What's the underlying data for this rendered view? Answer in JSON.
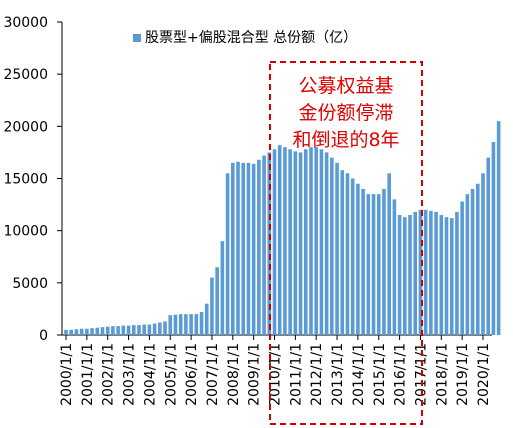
{
  "chart_data": {
    "type": "bar",
    "legend": "股票型+偏股混合型 总份额（亿）",
    "color": "#5b9bd5",
    "annotation": [
      "公募权益基",
      "金份额停滞",
      "和倒退的8年"
    ],
    "categories": [
      "2000/1/1",
      null,
      null,
      null,
      "2001/1/1",
      null,
      null,
      null,
      "2002/1/1",
      null,
      null,
      null,
      "2003/1/1",
      null,
      null,
      null,
      "2004/1/1",
      null,
      null,
      null,
      "2005/1/1",
      null,
      null,
      null,
      "2006/1/1",
      null,
      null,
      null,
      "2007/1/1",
      null,
      null,
      null,
      "2008/1/1",
      null,
      null,
      null,
      "2009/1/1",
      null,
      null,
      null,
      "2010/1/1",
      null,
      null,
      null,
      "2011/1/1",
      null,
      null,
      null,
      "2012/1/1",
      null,
      null,
      null,
      "2013/1/1",
      null,
      null,
      null,
      "2014/1/1",
      null,
      null,
      null,
      "2015/1/1",
      null,
      null,
      null,
      "2016/1/1",
      null,
      null,
      null,
      "2017/1/1",
      null,
      null,
      null,
      "2018/1/1",
      null,
      null,
      null,
      "2019/1/1",
      null,
      null,
      null,
      "2020/1/1",
      null,
      null,
      null
    ],
    "values": [
      500,
      500,
      550,
      600,
      600,
      650,
      700,
      750,
      800,
      850,
      850,
      900,
      900,
      950,
      950,
      1000,
      1000,
      1100,
      1200,
      1300,
      1900,
      1950,
      2000,
      2000,
      2000,
      2000,
      2200,
      3000,
      5500,
      6500,
      9000,
      15500,
      16500,
      16600,
      16500,
      16500,
      16400,
      16800,
      17200,
      17500,
      17800,
      18200,
      18000,
      17800,
      17600,
      17500,
      17800,
      18000,
      18000,
      17800,
      17500,
      17000,
      16500,
      15800,
      15500,
      15000,
      14500,
      14000,
      13500,
      13500,
      13500,
      14000,
      15500,
      13000,
      11500,
      11300,
      11500,
      11800,
      12000,
      12000,
      11900,
      11800,
      11500,
      11300,
      11200,
      11800,
      12800,
      13500,
      14000,
      14500,
      15500,
      17000,
      18500,
      20500
    ],
    "ylim": [
      0,
      30000
    ],
    "yticks": [
      0,
      5000,
      10000,
      15000,
      20000,
      25000,
      30000
    ]
  }
}
